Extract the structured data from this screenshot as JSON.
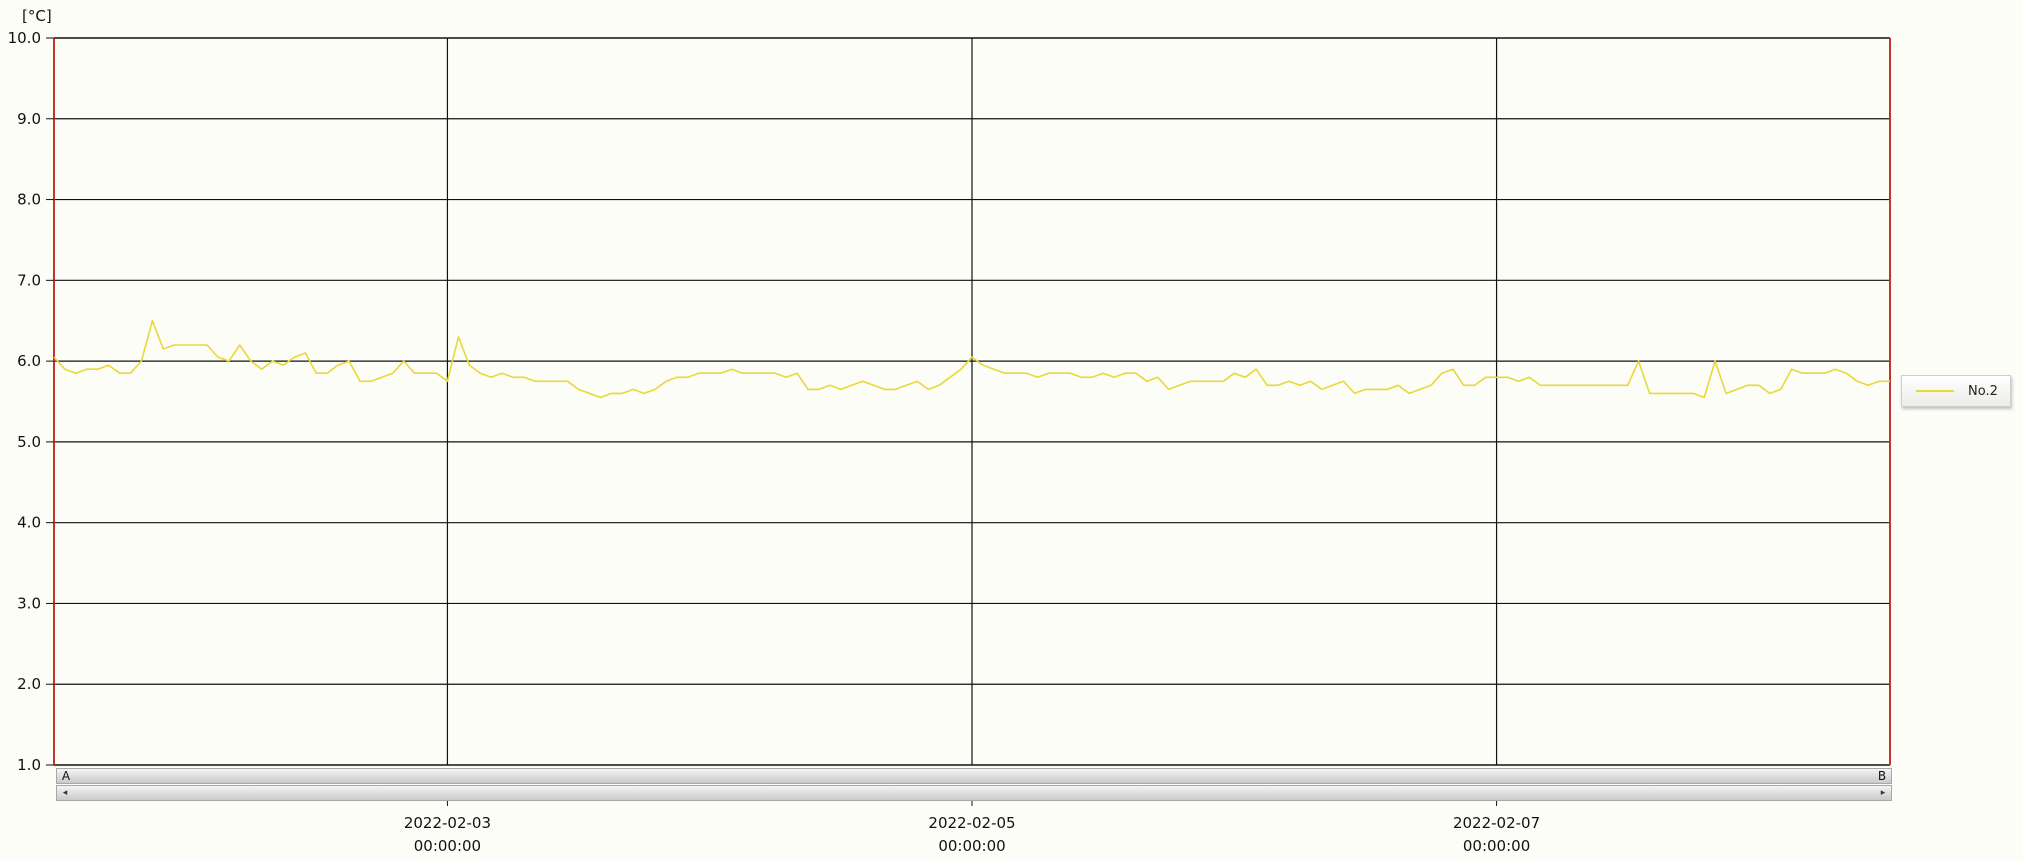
{
  "chart_data": {
    "type": "line",
    "unit_label": "[°C]",
    "ylim": [
      1.0,
      10.0
    ],
    "y_ticks": [
      "10.0",
      "9.0",
      "8.0",
      "7.0",
      "6.0",
      "5.0",
      "4.0",
      "3.0",
      "2.0",
      "1.0"
    ],
    "xlim": [
      "2022-02-01 12:00",
      "2022-02-08 12:00"
    ],
    "x_ticks": [
      {
        "date": "2022-02-03",
        "time": "00:00:00"
      },
      {
        "date": "2022-02-05",
        "time": "00:00:00"
      },
      {
        "date": "2022-02-07",
        "time": "00:00:00"
      }
    ],
    "grid": true,
    "legend_position": "right",
    "series": [
      {
        "name": "No.2",
        "color": "#e8d838",
        "x_start": "2022-02-01 12:00",
        "x_end": "2022-02-08 12:00",
        "values": [
          6.05,
          5.9,
          5.85,
          5.9,
          5.9,
          5.95,
          5.85,
          5.85,
          6.0,
          6.5,
          6.15,
          6.2,
          6.2,
          6.2,
          6.2,
          6.05,
          6.0,
          6.2,
          6.0,
          5.9,
          6.0,
          5.95,
          6.05,
          6.1,
          5.85,
          5.85,
          5.95,
          6.0,
          5.75,
          5.75,
          5.8,
          5.85,
          6.0,
          5.85,
          5.85,
          5.85,
          5.75,
          6.3,
          5.95,
          5.85,
          5.8,
          5.85,
          5.8,
          5.8,
          5.75,
          5.75,
          5.75,
          5.75,
          5.65,
          5.6,
          5.55,
          5.6,
          5.6,
          5.65,
          5.6,
          5.65,
          5.75,
          5.8,
          5.8,
          5.85,
          5.85,
          5.85,
          5.9,
          5.85,
          5.85,
          5.85,
          5.85,
          5.8,
          5.85,
          5.65,
          5.65,
          5.7,
          5.65,
          5.7,
          5.75,
          5.7,
          5.65,
          5.65,
          5.7,
          5.75,
          5.65,
          5.7,
          5.8,
          5.9,
          6.05,
          5.95,
          5.9,
          5.85,
          5.85,
          5.85,
          5.8,
          5.85,
          5.85,
          5.85,
          5.8,
          5.8,
          5.85,
          5.8,
          5.85,
          5.85,
          5.75,
          5.8,
          5.65,
          5.7,
          5.75,
          5.75,
          5.75,
          5.75,
          5.85,
          5.8,
          5.9,
          5.7,
          5.7,
          5.75,
          5.7,
          5.75,
          5.65,
          5.7,
          5.75,
          5.6,
          5.65,
          5.65,
          5.65,
          5.7,
          5.6,
          5.65,
          5.7,
          5.85,
          5.9,
          5.7,
          5.7,
          5.8,
          5.8,
          5.8,
          5.75,
          5.8,
          5.7,
          5.7,
          5.7,
          5.7,
          5.7,
          5.7,
          5.7,
          5.7,
          5.7,
          6.0,
          5.6,
          5.6,
          5.6,
          5.6,
          5.6,
          5.55,
          6.0,
          5.6,
          5.65,
          5.7,
          5.7,
          5.6,
          5.65,
          5.9,
          5.85,
          5.85,
          5.85,
          5.9,
          5.85,
          5.75,
          5.7,
          5.75,
          5.75
        ]
      }
    ]
  },
  "scrollbars": {
    "a_label": "A",
    "b_label": "B"
  }
}
